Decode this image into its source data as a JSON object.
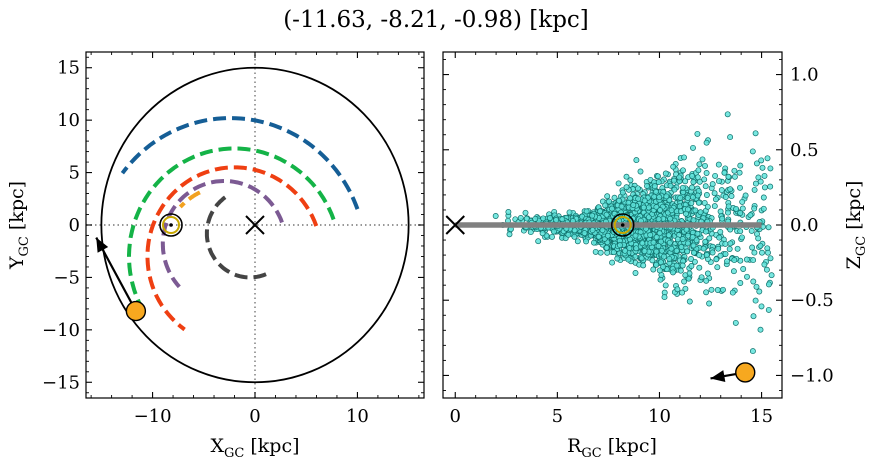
{
  "title": "(-11.63, -8.21, -0.98) [kpc]",
  "colors": {
    "arm_blue": "#155e96",
    "arm_green": "#14b347",
    "arm_orange": "#f2a11f",
    "arm_red": "#ef3f12",
    "arm_purple": "#7c5a93",
    "arm_gray": "#444444",
    "star_fill": "#f7a81f",
    "scatter_fill": "#5fe3da",
    "scatter_edge": "#0f6f6a",
    "disk_line": "#808080",
    "sun_ring": "#c8a800"
  },
  "chart_data": [
    {
      "type": "line",
      "panel": "xy",
      "xlabel": "X",
      "xlabel_sub": "GC",
      "xlabel_unit": " [kpc]",
      "ylabel": "Y",
      "ylabel_sub": "GC",
      "ylabel_unit": " [kpc]",
      "xlim": [
        -16.5,
        16.5
      ],
      "ylim": [
        -16.5,
        16.5
      ],
      "xticks": [
        -10,
        0,
        10
      ],
      "xtick_labels": [
        "−10",
        "0",
        "10"
      ],
      "yticks": [
        -15,
        -10,
        -5,
        0,
        5,
        10,
        15
      ],
      "ytick_labels": [
        "−15",
        "−10",
        "−5",
        "0",
        "5",
        "10",
        "15"
      ],
      "boundary_circle_radius": 15,
      "galactic_center": [
        0,
        0
      ],
      "sun": [
        -8.2,
        0.0
      ],
      "object": [
        -11.63,
        -8.21
      ],
      "velocity_arrow_to": [
        -15.5,
        -1.2
      ],
      "arms": [
        {
          "color_key": "arm_blue",
          "center": [
            -2.4,
            -3.0
          ],
          "radius": 13.2,
          "start_deg": 20,
          "end_deg": 143
        },
        {
          "color_key": "arm_orange",
          "center": [
            -2.4,
            -3.0
          ],
          "radius": 6.8,
          "start_deg": 116,
          "end_deg": 136
        },
        {
          "color_key": "arm_green",
          "center": [
            -2.0,
            -3.0
          ],
          "radius": 10.3,
          "start_deg": 20,
          "end_deg": 211
        },
        {
          "color_key": "arm_red",
          "center": [
            -2.0,
            -3.0
          ],
          "radius": 8.5,
          "start_deg": 20,
          "end_deg": 235
        },
        {
          "color_key": "arm_purple",
          "center": [
            -3.0,
            -1.8
          ],
          "radius": 6.0,
          "start_deg": 20,
          "end_deg": 223
        },
        {
          "color_key": "arm_gray",
          "center": [
            -0.5,
            -0.8
          ],
          "radius": 4.2,
          "start_deg": 125,
          "end_deg": 300
        }
      ]
    },
    {
      "type": "scatter",
      "panel": "rz",
      "xlabel": "R",
      "xlabel_sub": "GC",
      "xlabel_unit": " [kpc]",
      "ylabel": "Z",
      "ylabel_sub": "GC",
      "ylabel_unit": " [kpc]",
      "xlim": [
        -0.6,
        16.0
      ],
      "ylim": [
        -1.15,
        1.15
      ],
      "xticks": [
        0,
        5,
        10,
        15
      ],
      "xtick_labels": [
        "0",
        "5",
        "10",
        "15"
      ],
      "yticks": [
        -1.0,
        -0.5,
        0.0,
        0.5,
        1.0
      ],
      "ytick_labels": [
        "−1.0",
        "−0.5",
        "0.0",
        "0.5",
        "1.0"
      ],
      "disk_line": {
        "x": [
          0,
          15
        ],
        "y": 0
      },
      "galactic_center": [
        0,
        0
      ],
      "sun": [
        8.2,
        0.0
      ],
      "object": [
        14.2,
        -0.98
      ],
      "velocity_arrow_to": [
        12.5,
        -1.02
      ],
      "stars_count": 2600,
      "stars_r_range": [
        1.6,
        15.6
      ],
      "stars_z_range": [
        -1.05,
        1.1
      ]
    }
  ]
}
